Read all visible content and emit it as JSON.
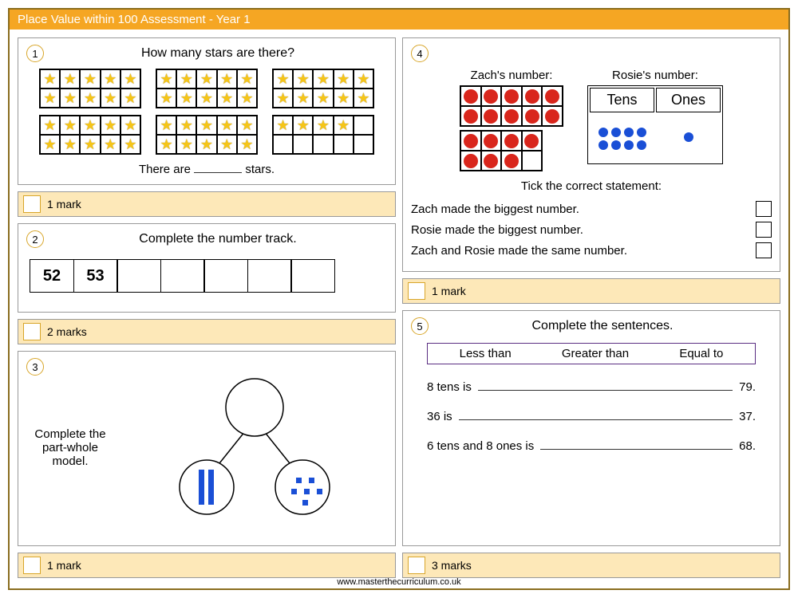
{
  "title": "Place Value within 100 Assessment - Year 1",
  "footer": "www.masterthecurriculum.co.uk",
  "colors": {
    "accent": "#f5a623",
    "mark_bg": "#fde8b8",
    "circle_border": "#d8a62a",
    "star": "#f5c518",
    "red": "#d9261c",
    "blue": "#1a4fd6",
    "wordbank_border": "#5a2d82"
  },
  "q1": {
    "num": "1",
    "title": "How many stars are there?",
    "frames": [
      [
        10,
        10,
        10
      ],
      [
        10,
        10,
        4
      ]
    ],
    "sentence_pre": "There are",
    "sentence_post": "stars.",
    "marks": "1 mark"
  },
  "q2": {
    "num": "2",
    "title": "Complete the number track.",
    "cells": [
      "52",
      "53",
      "",
      "",
      "",
      "",
      ""
    ],
    "marks": "2 marks"
  },
  "q3": {
    "num": "3",
    "text": "Complete the part-whole model.",
    "part_left": {
      "type": "rods",
      "count": 2,
      "color": "#1a4fd6"
    },
    "part_right": {
      "type": "dots",
      "count": 6,
      "color": "#1a4fd6"
    },
    "marks": "1 mark"
  },
  "q4": {
    "num": "4",
    "zach_label": "Zach's number:",
    "rosie_label": "Rosie's number:",
    "zach_frames": [
      10,
      8
    ],
    "rosie_headers": [
      "Tens",
      "Ones"
    ],
    "rosie_tens": 8,
    "rosie_ones": 1,
    "tick_title": "Tick the correct statement:",
    "statements": [
      "Zach made the biggest number.",
      "Rosie made the biggest number.",
      "Zach and Rosie made the same number."
    ],
    "marks": "1 mark"
  },
  "q5": {
    "num": "5",
    "title": "Complete the sentences.",
    "wordbank": [
      "Less than",
      "Greater than",
      "Equal to"
    ],
    "lines": [
      {
        "pre": "8 tens is",
        "post": "79."
      },
      {
        "pre": "36 is",
        "post": "37."
      },
      {
        "pre": "6 tens and 8 ones is",
        "post": "68."
      }
    ],
    "marks": "3 marks"
  }
}
